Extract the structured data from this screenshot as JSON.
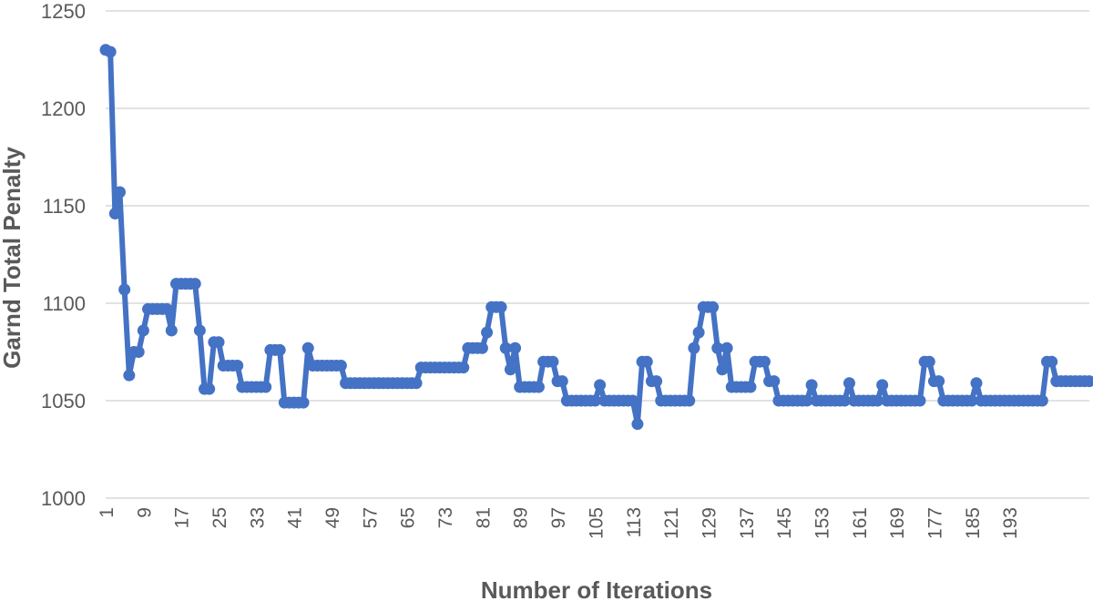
{
  "chart_data": {
    "type": "line",
    "xlabel": "Number of Iterations",
    "ylabel": "Garnd Total Penalty",
    "ylim": [
      1000,
      1250
    ],
    "y_ticks": [
      1000,
      1050,
      1100,
      1150,
      1200,
      1250
    ],
    "x_tick_labels": [
      "1",
      "9",
      "17",
      "25",
      "33",
      "41",
      "49",
      "57",
      "65",
      "73",
      "81",
      "89",
      "97",
      "105",
      "113",
      "121",
      "129",
      "137",
      "145",
      "153",
      "161",
      "169",
      "177",
      "185",
      "193"
    ],
    "grid": "horizontal",
    "line_color": "#4472C4",
    "markers": true,
    "series": [
      {
        "values": [
          1230,
          1229,
          1146,
          1157,
          1107,
          1063,
          1075,
          1075,
          1086,
          1097,
          1097,
          1097,
          1097,
          1097,
          1086,
          1110,
          1110,
          1110,
          1110,
          1110,
          1086,
          1056,
          1056,
          1080,
          1080,
          1068,
          1068,
          1068,
          1068,
          1057,
          1057,
          1057,
          1057,
          1057,
          1057,
          1076,
          1076,
          1076,
          1049,
          1049,
          1049,
          1049,
          1049,
          1077,
          1068,
          1068,
          1068,
          1068,
          1068,
          1068,
          1068,
          1059,
          1059,
          1059,
          1059,
          1059,
          1059,
          1059,
          1059,
          1059,
          1059,
          1059,
          1059,
          1059,
          1059,
          1059,
          1059,
          1067,
          1067,
          1067,
          1067,
          1067,
          1067,
          1067,
          1067,
          1067,
          1067,
          1077,
          1077,
          1077,
          1077,
          1085,
          1098,
          1098,
          1098,
          1077,
          1066,
          1077,
          1057,
          1057,
          1057,
          1057,
          1057,
          1070,
          1070,
          1070,
          1060,
          1060,
          1050,
          1050,
          1050,
          1050,
          1050,
          1050,
          1050,
          1058,
          1050,
          1050,
          1050,
          1050,
          1050,
          1050,
          1050,
          1038,
          1070,
          1070,
          1060,
          1060,
          1050,
          1050,
          1050,
          1050,
          1050,
          1050,
          1050,
          1077,
          1085,
          1098,
          1098,
          1098,
          1077,
          1066,
          1077,
          1057,
          1057,
          1057,
          1057,
          1057,
          1070,
          1070,
          1070,
          1060,
          1060,
          1050,
          1050,
          1050,
          1050,
          1050,
          1050,
          1050,
          1058,
          1050,
          1050,
          1050,
          1050,
          1050,
          1050,
          1050,
          1059,
          1050,
          1050,
          1050,
          1050,
          1050,
          1050,
          1058,
          1050,
          1050,
          1050,
          1050,
          1050,
          1050,
          1050,
          1050,
          1070,
          1070,
          1060,
          1060,
          1050,
          1050,
          1050,
          1050,
          1050,
          1050,
          1050,
          1059,
          1050,
          1050,
          1050,
          1050,
          1050,
          1050,
          1050,
          1050,
          1050,
          1050,
          1050,
          1050,
          1050,
          1050,
          1070,
          1070,
          1060,
          1060,
          1060,
          1060,
          1060,
          1060,
          1060,
          1060
        ]
      }
    ]
  }
}
